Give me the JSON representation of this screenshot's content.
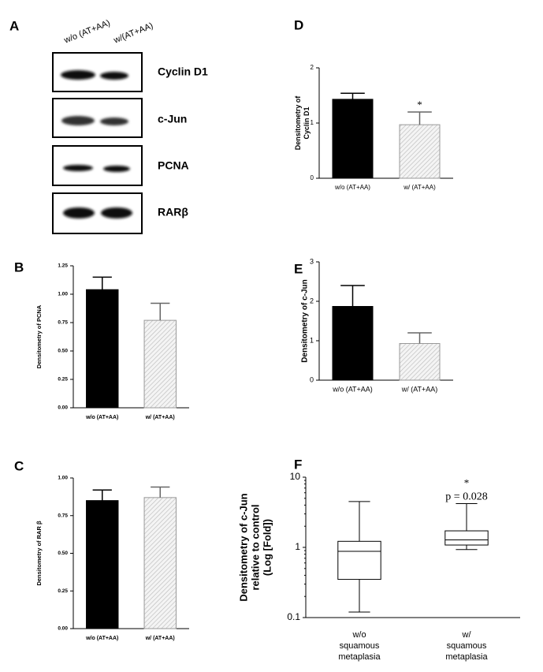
{
  "blot": {
    "label": "A",
    "lanes": [
      "w/o (AT+AA)",
      "w/(AT+AA)"
    ],
    "bands": [
      "Cyclin D1",
      "c-Jun",
      "PCNA",
      "RARβ"
    ]
  },
  "chart_data": [
    {
      "type": "bar",
      "label": "B",
      "ylabel": [
        "Densitometry of PCNA"
      ],
      "categories": [
        "w/o (AT+AA)",
        "w/ (AT+AA)"
      ],
      "values": [
        1.04,
        0.77
      ],
      "errors": [
        0.11,
        0.15
      ],
      "colors": [
        "#000000",
        "#ececec"
      ],
      "hatch": [
        false,
        true
      ],
      "ylim": [
        0,
        1.25
      ],
      "yticks": [
        {
          "value": 0,
          "label": "0.00"
        },
        {
          "value": 0.25,
          "label": "0.25"
        },
        {
          "value": 0.5,
          "label": "0.50"
        },
        {
          "value": 0.75,
          "label": "0.75"
        },
        {
          "value": 1,
          "label": "1.00"
        },
        {
          "value": 1.25,
          "label": "1.25"
        }
      ]
    },
    {
      "type": "bar",
      "label": "C",
      "ylabel": [
        "Densitometry of RAR β"
      ],
      "categories": [
        "w/o (AT+AA)",
        "w/ (AT+AA)"
      ],
      "values": [
        0.85,
        0.87
      ],
      "errors": [
        0.07,
        0.07
      ],
      "colors": [
        "#000000",
        "#ececec"
      ],
      "hatch": [
        false,
        true
      ],
      "ylim": [
        0,
        1
      ],
      "yticks": [
        {
          "value": 0,
          "label": "0.00"
        },
        {
          "value": 0.25,
          "label": "0.25"
        },
        {
          "value": 0.5,
          "label": "0.50"
        },
        {
          "value": 0.75,
          "label": "0.75"
        },
        {
          "value": 1,
          "label": "1.00"
        }
      ]
    },
    {
      "type": "bar",
      "label": "D",
      "ylabel": [
        "Densitometry of",
        "Cyclin D1"
      ],
      "categories": [
        "w/o (AT+AA)",
        "w/ (AT+AA)"
      ],
      "values": [
        1.43,
        0.97
      ],
      "errors": [
        0.11,
        0.23
      ],
      "colors": [
        "#000000",
        "#ececec"
      ],
      "hatch": [
        false,
        true
      ],
      "annotations": [
        "*"
      ],
      "ylim": [
        0,
        2
      ],
      "yticks": [
        0,
        1,
        2
      ]
    },
    {
      "type": "bar",
      "label": "E",
      "ylabel": [
        "Densitometry of c-Jun"
      ],
      "categories": [
        "w/o (AT+AA)",
        "w/ (AT+AA)"
      ],
      "values": [
        1.87,
        0.93
      ],
      "errors": [
        0.53,
        0.27
      ],
      "colors": [
        "#000000",
        "#ececec"
      ],
      "hatch": [
        false,
        true
      ],
      "ylim": [
        0,
        3
      ],
      "yticks": [
        0,
        1,
        2,
        3
      ]
    },
    {
      "type": "box",
      "label": "F",
      "ylabel": [
        "Densitometry of c-Jun",
        "relative to control",
        "(Log [Fold])"
      ],
      "categories": [
        [
          "w/o",
          "squamous",
          "metaplasia"
        ],
        [
          "w/",
          "squamous",
          "metaplasia"
        ]
      ],
      "boxes": [
        {
          "low": 0.12,
          "q1": 0.35,
          "median": 0.88,
          "q3": 1.22,
          "high": 4.5
        },
        {
          "low": 0.93,
          "q1": 1.08,
          "median": 1.28,
          "q3": 1.72,
          "high": 4.2
        }
      ],
      "annotations": [
        "*",
        "p = 0.028"
      ],
      "log": true,
      "ylim": [
        0.1,
        10
      ],
      "yticks": [
        0.1,
        1,
        10
      ]
    }
  ]
}
